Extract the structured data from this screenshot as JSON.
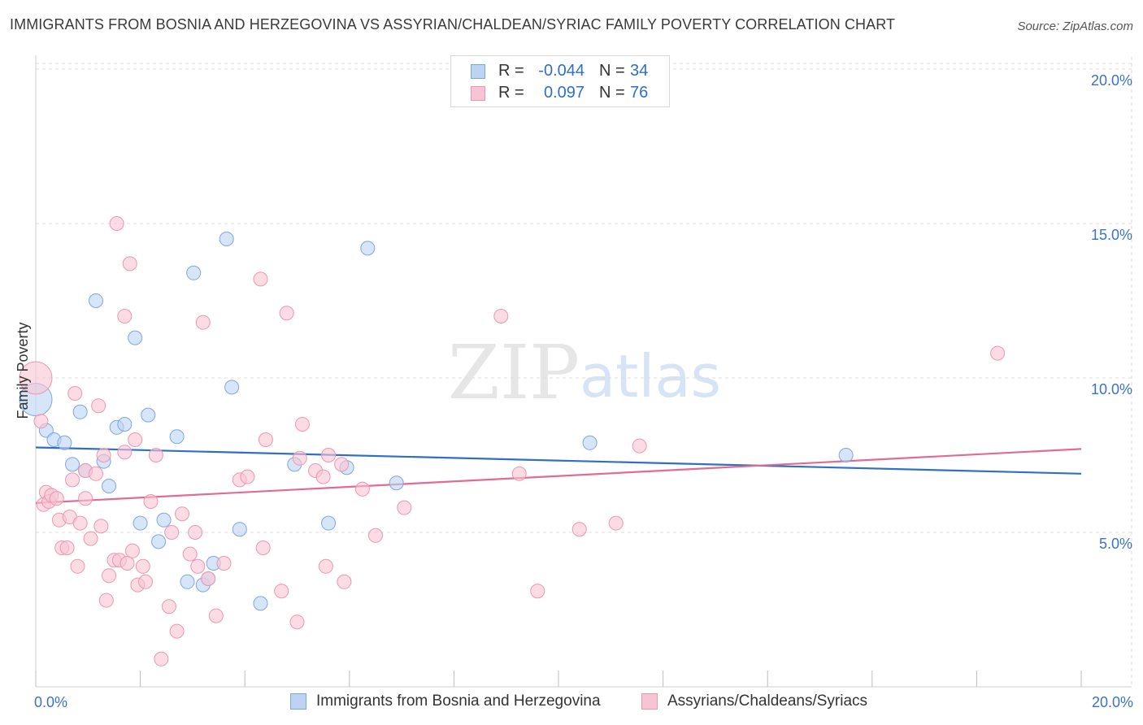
{
  "title": "IMMIGRANTS FROM BOSNIA AND HERZEGOVINA VS ASSYRIAN/CHALDEAN/SYRIAC FAMILY POVERTY CORRELATION CHART",
  "source": "Source: ZipAtlas.com",
  "watermark": {
    "zip": "ZIP",
    "atlas": "atlas"
  },
  "legend_top": [
    {
      "r_label": "R =",
      "r_value": "-0.044",
      "n_label": "N =",
      "n_value": "34"
    },
    {
      "r_label": "R =",
      "r_value": "0.097",
      "n_label": "N =",
      "n_value": "76"
    }
  ],
  "colors": {
    "blue_fill": "#bcd4f4",
    "blue_stroke": "#7ea7df",
    "blue_line": "#2f6fc7",
    "pink_fill": "#f8c4d4",
    "pink_stroke": "#ec97b2",
    "pink_line": "#e26b94",
    "tick_label": "#3b72c4",
    "grid": "#dcdcdc"
  },
  "chart_data": {
    "type": "scatter",
    "title": "IMMIGRANTS FROM BOSNIA AND HERZEGOVINA VS ASSYRIAN/CHALDEAN/SYRIAC FAMILY POVERTY CORRELATION CHART",
    "xlabel": "",
    "ylabel": "Family Poverty",
    "xlim": [
      0,
      20
    ],
    "ylim": [
      0,
      20.5
    ],
    "x_tick_labels": [
      {
        "value": 0,
        "label": "0.0%"
      },
      {
        "value": 20,
        "label": "20.0%"
      }
    ],
    "x_minor_ticks": [
      0,
      2,
      4,
      6,
      8,
      10,
      12,
      14,
      16,
      18,
      20
    ],
    "y_ticks": [
      {
        "value": 5,
        "label": "5.0%"
      },
      {
        "value": 10,
        "label": "10.0%"
      },
      {
        "value": 15,
        "label": "15.0%"
      },
      {
        "value": 20,
        "label": "20.0%"
      }
    ],
    "legend_placement": "top-center",
    "series": [
      {
        "name": "Immigrants from Bosnia and Herzegovina",
        "color": "blue",
        "r": -0.044,
        "n": 34,
        "trend": {
          "x": [
            0,
            20
          ],
          "y": [
            7.75,
            6.9
          ]
        },
        "points": [
          {
            "x": 0.0,
            "y": 9.3,
            "big": true
          },
          {
            "x": 0.2,
            "y": 8.3
          },
          {
            "x": 0.35,
            "y": 8.0
          },
          {
            "x": 0.55,
            "y": 7.9
          },
          {
            "x": 0.7,
            "y": 7.2
          },
          {
            "x": 0.85,
            "y": 8.9
          },
          {
            "x": 0.95,
            "y": 7.0
          },
          {
            "x": 1.15,
            "y": 12.5
          },
          {
            "x": 1.3,
            "y": 7.3
          },
          {
            "x": 1.4,
            "y": 6.5
          },
          {
            "x": 1.55,
            "y": 8.4
          },
          {
            "x": 1.7,
            "y": 8.5
          },
          {
            "x": 1.9,
            "y": 11.3
          },
          {
            "x": 2.0,
            "y": 5.3
          },
          {
            "x": 2.15,
            "y": 8.8
          },
          {
            "x": 2.35,
            "y": 4.7
          },
          {
            "x": 2.45,
            "y": 5.4
          },
          {
            "x": 2.7,
            "y": 8.1
          },
          {
            "x": 2.9,
            "y": 3.4
          },
          {
            "x": 3.02,
            "y": 13.4
          },
          {
            "x": 3.2,
            "y": 3.3
          },
          {
            "x": 3.3,
            "y": 3.5
          },
          {
            "x": 3.4,
            "y": 4.0
          },
          {
            "x": 3.65,
            "y": 14.5
          },
          {
            "x": 3.75,
            "y": 9.7
          },
          {
            "x": 3.9,
            "y": 5.1
          },
          {
            "x": 4.3,
            "y": 2.7
          },
          {
            "x": 4.95,
            "y": 7.2
          },
          {
            "x": 5.6,
            "y": 5.3
          },
          {
            "x": 5.95,
            "y": 7.1
          },
          {
            "x": 6.35,
            "y": 14.2
          },
          {
            "x": 6.9,
            "y": 6.6
          },
          {
            "x": 10.6,
            "y": 7.9
          },
          {
            "x": 15.5,
            "y": 7.5
          }
        ]
      },
      {
        "name": "Assyrians/Chaldeans/Syriacs",
        "color": "pink",
        "r": 0.097,
        "n": 76,
        "trend": {
          "x": [
            0,
            20
          ],
          "y": [
            5.95,
            7.7
          ]
        },
        "points": [
          {
            "x": 0.0,
            "y": 10.0,
            "big": true
          },
          {
            "x": 0.1,
            "y": 8.6
          },
          {
            "x": 0.15,
            "y": 5.9
          },
          {
            "x": 0.2,
            "y": 6.3
          },
          {
            "x": 0.25,
            "y": 6.0
          },
          {
            "x": 0.3,
            "y": 6.2
          },
          {
            "x": 0.4,
            "y": 6.1
          },
          {
            "x": 0.45,
            "y": 5.4
          },
          {
            "x": 0.5,
            "y": 4.5
          },
          {
            "x": 0.6,
            "y": 4.5
          },
          {
            "x": 0.65,
            "y": 5.5
          },
          {
            "x": 0.7,
            "y": 6.7
          },
          {
            "x": 0.75,
            "y": 9.5
          },
          {
            "x": 0.8,
            "y": 3.9
          },
          {
            "x": 0.85,
            "y": 5.3
          },
          {
            "x": 0.95,
            "y": 7.0
          },
          {
            "x": 0.95,
            "y": 6.1
          },
          {
            "x": 1.05,
            "y": 4.8
          },
          {
            "x": 1.15,
            "y": 6.9
          },
          {
            "x": 1.2,
            "y": 9.1
          },
          {
            "x": 1.25,
            "y": 5.2
          },
          {
            "x": 1.3,
            "y": 7.5
          },
          {
            "x": 1.35,
            "y": 2.8
          },
          {
            "x": 1.4,
            "y": 3.6
          },
          {
            "x": 1.5,
            "y": 4.1
          },
          {
            "x": 1.55,
            "y": 15.0
          },
          {
            "x": 1.6,
            "y": 4.1
          },
          {
            "x": 1.7,
            "y": 7.6
          },
          {
            "x": 1.7,
            "y": 12.0
          },
          {
            "x": 1.75,
            "y": 4.0
          },
          {
            "x": 1.8,
            "y": 13.7
          },
          {
            "x": 1.85,
            "y": 4.4
          },
          {
            "x": 1.9,
            "y": 8.0
          },
          {
            "x": 1.95,
            "y": 3.3
          },
          {
            "x": 2.05,
            "y": 3.9
          },
          {
            "x": 2.1,
            "y": 3.4
          },
          {
            "x": 2.2,
            "y": 6.0
          },
          {
            "x": 2.3,
            "y": 7.5
          },
          {
            "x": 2.4,
            "y": 0.9
          },
          {
            "x": 2.55,
            "y": 2.6
          },
          {
            "x": 2.6,
            "y": 5.0
          },
          {
            "x": 2.7,
            "y": 1.8
          },
          {
            "x": 2.8,
            "y": 5.6
          },
          {
            "x": 2.95,
            "y": 4.3
          },
          {
            "x": 3.05,
            "y": 5.0
          },
          {
            "x": 3.1,
            "y": 3.9
          },
          {
            "x": 3.2,
            "y": 11.8
          },
          {
            "x": 3.3,
            "y": 3.5
          },
          {
            "x": 3.45,
            "y": 2.3
          },
          {
            "x": 3.6,
            "y": 4.0
          },
          {
            "x": 3.9,
            "y": 6.7
          },
          {
            "x": 4.05,
            "y": 6.8
          },
          {
            "x": 4.3,
            "y": 13.2
          },
          {
            "x": 4.35,
            "y": 4.5
          },
          {
            "x": 4.4,
            "y": 8.0
          },
          {
            "x": 4.7,
            "y": 3.1
          },
          {
            "x": 4.8,
            "y": 12.1
          },
          {
            "x": 5.0,
            "y": 2.1
          },
          {
            "x": 5.05,
            "y": 7.4
          },
          {
            "x": 5.1,
            "y": 8.5
          },
          {
            "x": 5.35,
            "y": 7.0
          },
          {
            "x": 5.5,
            "y": 6.8
          },
          {
            "x": 5.55,
            "y": 3.9
          },
          {
            "x": 5.6,
            "y": 7.5
          },
          {
            "x": 5.85,
            "y": 7.2
          },
          {
            "x": 5.9,
            "y": 3.4
          },
          {
            "x": 6.25,
            "y": 6.4
          },
          {
            "x": 6.5,
            "y": 4.9
          },
          {
            "x": 7.05,
            "y": 5.8
          },
          {
            "x": 8.9,
            "y": 12.0
          },
          {
            "x": 9.25,
            "y": 6.9
          },
          {
            "x": 9.6,
            "y": 3.1
          },
          {
            "x": 10.4,
            "y": 5.1
          },
          {
            "x": 11.1,
            "y": 5.3
          },
          {
            "x": 11.55,
            "y": 7.8
          },
          {
            "x": 18.4,
            "y": 10.8
          }
        ]
      }
    ]
  }
}
